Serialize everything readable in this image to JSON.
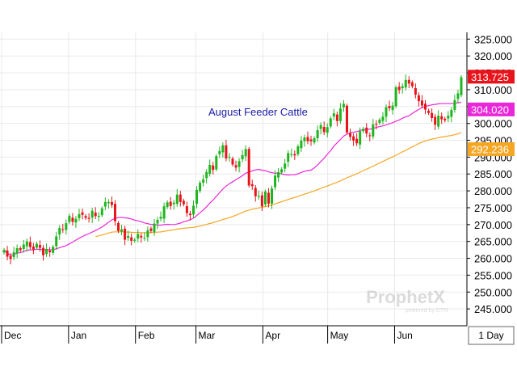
{
  "chart_data": {
    "type": "candlestick",
    "title": "August Feeder Cattle",
    "interval_label": "1 Day",
    "watermark": {
      "name": "ProphetX",
      "sub": "powered by DTN"
    },
    "ylim": [
      240,
      327
    ],
    "y_ticks": [
      "245.000",
      "250.000",
      "255.000",
      "260.000",
      "265.000",
      "270.000",
      "275.000",
      "280.000",
      "285.000",
      "290.000",
      "295.000",
      "300.000",
      "305.000",
      "310.000",
      "315.000",
      "320.000",
      "325.000"
    ],
    "x_months": [
      {
        "label": "Dec",
        "day": 0
      },
      {
        "label": "Jan",
        "day": 31
      },
      {
        "label": "Feb",
        "day": 62
      },
      {
        "label": "Mar",
        "day": 90
      },
      {
        "label": "Apr",
        "day": 121
      },
      {
        "label": "May",
        "day": 151
      },
      {
        "label": "Jun",
        "day": 182
      }
    ],
    "x_end_day": 214,
    "price_flags": [
      {
        "label": "313.725",
        "value": 313.725,
        "color": "#e8141c"
      },
      {
        "label": "304.020",
        "value": 304.02,
        "color": "#ea28d9"
      },
      {
        "label": "292.236",
        "value": 292.236,
        "color": "#f5a623"
      }
    ],
    "colors": {
      "up": "#1fb51f",
      "down": "#e8141c",
      "ma_short": "#ea28d9",
      "ma_long": "#f5a623",
      "title": "#1a1aa6"
    },
    "closes": [
      262.5,
      260.5,
      259.8,
      261.8,
      263.0,
      262.4,
      264.1,
      265.0,
      263.3,
      262.6,
      264.3,
      263.1,
      260.9,
      262.8,
      261.8,
      263.4,
      266.5,
      269.0,
      268.4,
      270.4,
      272.6,
      270.8,
      271.7,
      273.1,
      272.9,
      272.0,
      271.7,
      274.1,
      272.5,
      272.6,
      274.8,
      276.7,
      276.7,
      275.8,
      271.0,
      268.1,
      268.6,
      265.5,
      266.6,
      265.2,
      265.5,
      267.2,
      266.2,
      266.1,
      268.3,
      268.1,
      270.3,
      271.4,
      272.3,
      275.4,
      276.6,
      275.5,
      276.5,
      278.9,
      276.7,
      276.0,
      273.4,
      272.8,
      275.6,
      280.3,
      282.4,
      283.4,
      285.6,
      287.7,
      286.2,
      290.3,
      291.8,
      293.5,
      289.6,
      290.1,
      287.8,
      286.9,
      288.8,
      290.6,
      292.4,
      281.6,
      281.4,
      278.4,
      278.5,
      275.4,
      279.8,
      276.2,
      280.7,
      284.5,
      285.6,
      286.4,
      288.1,
      291.2,
      290.9,
      290.5,
      293.2,
      294.9,
      295.8,
      294.7,
      294.7,
      295.6,
      298.0,
      299.5,
      297.4,
      298.9,
      301.5,
      303.0,
      300.7,
      304.4,
      305.8,
      297.3,
      296.0,
      294.9,
      294.1,
      297.7,
      298.4,
      297.0,
      296.3,
      299.7,
      299.6,
      301.1,
      302.0,
      304.8,
      304.5,
      305.3,
      310.7,
      309.9,
      311.0,
      312.9,
      311.8,
      311.0,
      308.5,
      306.6,
      305.3,
      304.1,
      303.1,
      301.6,
      299.6,
      302.3,
      301.2,
      300.9,
      302.3,
      304.0,
      306.9,
      308.9,
      313.7
    ]
  }
}
